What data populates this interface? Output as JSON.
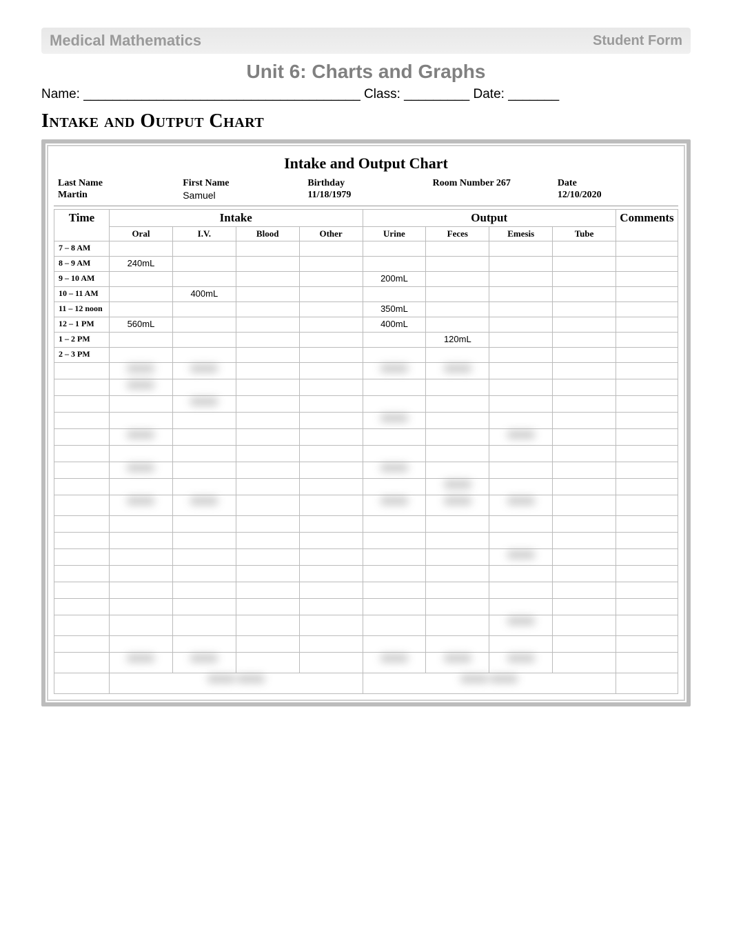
{
  "header": {
    "left": "Medical Mathematics",
    "right": "Student Form"
  },
  "unit_title": "Unit 6: Charts and Graphs",
  "form_line": "Name: ______________________________________   Class: _________   Date: _______",
  "section_heading": "Intake and Output Chart",
  "chart": {
    "title": "Intake and Output Chart",
    "patient": {
      "last_name_label": "Last Name",
      "last_name": "Martin",
      "first_name_label": "First Name",
      "first_name": "Samuel",
      "birthday_label": "Birthday",
      "birthday": "11/18/1979",
      "room_label": "Room Number 267",
      "room": "",
      "date_label": "Date",
      "date": "12/10/2020"
    },
    "columns": {
      "time": "Time",
      "intake": "Intake",
      "output": "Output",
      "comments": "Comments",
      "intake_sub": [
        "Oral",
        "I.V.",
        "Blood",
        "Other"
      ],
      "output_sub": [
        "Urine",
        "Feces",
        "Emesis",
        "Tube"
      ]
    },
    "rows": [
      {
        "time": "7 – 8 AM",
        "oral": "",
        "iv": "",
        "blood": "",
        "other": "",
        "urine": "",
        "feces": "",
        "emesis": "",
        "tube": "",
        "comments": ""
      },
      {
        "time": "8 – 9 AM",
        "oral": "240mL",
        "iv": "",
        "blood": "",
        "other": "",
        "urine": "",
        "feces": "",
        "emesis": "",
        "tube": "",
        "comments": ""
      },
      {
        "time": "9 – 10 AM",
        "oral": "",
        "iv": "",
        "blood": "",
        "other": "",
        "urine": "200mL",
        "feces": "",
        "emesis": "",
        "tube": "",
        "comments": ""
      },
      {
        "time": "10 – 11 AM",
        "oral": "",
        "iv": "400mL",
        "blood": "",
        "other": "",
        "urine": "",
        "feces": "",
        "emesis": "",
        "tube": "",
        "comments": ""
      },
      {
        "time": "11 – 12 noon",
        "oral": "",
        "iv": "",
        "blood": "",
        "other": "",
        "urine": "350mL",
        "feces": "",
        "emesis": "",
        "tube": "",
        "comments": ""
      },
      {
        "time": "12 – 1 PM",
        "oral": "560mL",
        "iv": "",
        "blood": "",
        "other": "",
        "urine": "400mL",
        "feces": "",
        "emesis": "",
        "tube": "",
        "comments": ""
      },
      {
        "time": "1 – 2 PM",
        "oral": "",
        "iv": "",
        "blood": "",
        "other": "",
        "urine": "",
        "feces": "120mL",
        "emesis": "",
        "tube": "",
        "comments": ""
      },
      {
        "time": "2 – 3 PM",
        "oral": "",
        "iv": "",
        "blood": "",
        "other": "",
        "urine": "",
        "feces": "",
        "emesis": "",
        "tube": "",
        "comments": ""
      }
    ]
  }
}
